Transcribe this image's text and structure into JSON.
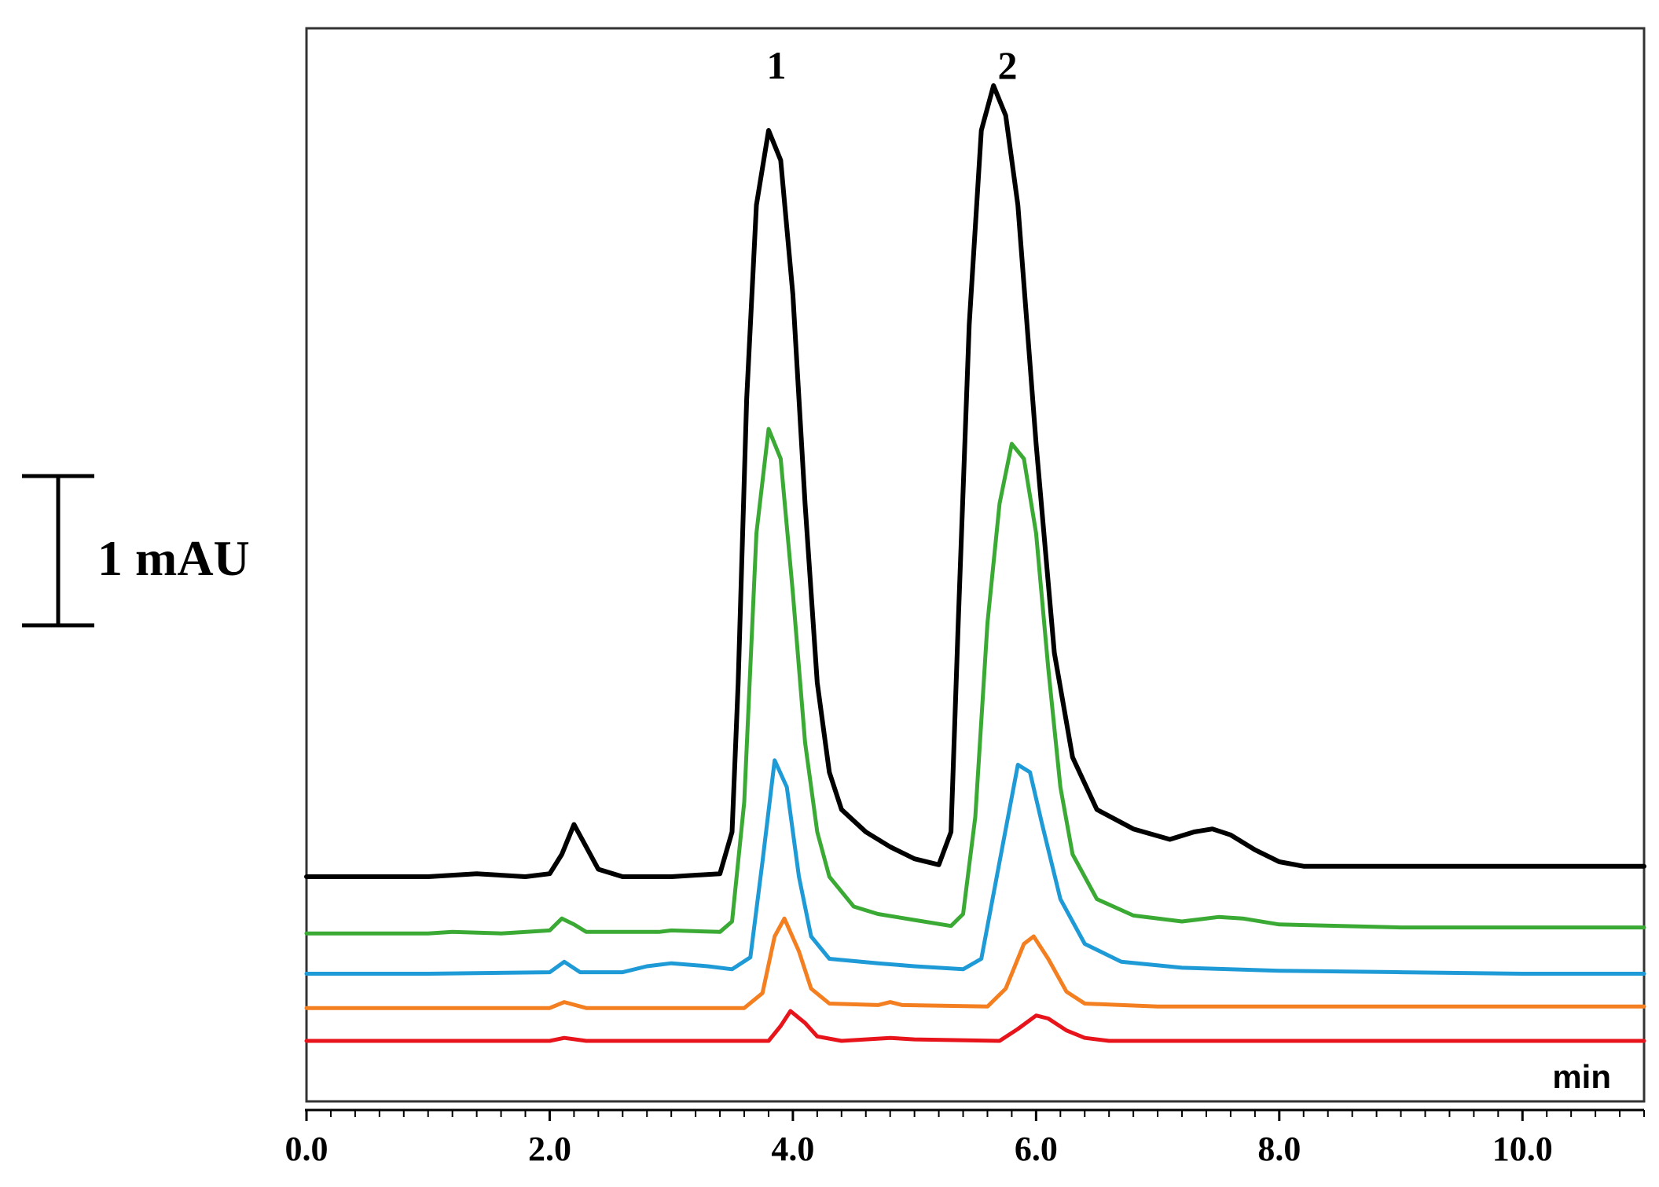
{
  "chart_data": {
    "type": "line",
    "title": "",
    "xlabel": "min",
    "ylabel": "",
    "xlim": [
      0,
      11
    ],
    "x_ticks": [
      "0.0",
      "2.0",
      "4.0",
      "6.0",
      "8.0",
      "10.0"
    ],
    "x_tick_values": [
      0,
      2,
      4,
      6,
      8,
      10
    ],
    "minor_tick_step": 0.2,
    "grid": false,
    "legend": "none",
    "scale_bar": {
      "label": "1 mAU",
      "value": 1
    },
    "peak_labels": [
      {
        "text": "1",
        "x": 3.8
      },
      {
        "text": "2",
        "x": 5.7
      }
    ],
    "series": [
      {
        "color": "#000000",
        "baseline": 1.1,
        "points": [
          [
            0,
            1.1
          ],
          [
            1.0,
            1.1
          ],
          [
            1.4,
            1.12
          ],
          [
            1.8,
            1.1
          ],
          [
            2.0,
            1.12
          ],
          [
            2.1,
            1.25
          ],
          [
            2.2,
            1.45
          ],
          [
            2.3,
            1.3
          ],
          [
            2.4,
            1.15
          ],
          [
            2.6,
            1.1
          ],
          [
            3.0,
            1.1
          ],
          [
            3.4,
            1.12
          ],
          [
            3.5,
            1.4
          ],
          [
            3.55,
            2.4
          ],
          [
            3.62,
            4.3
          ],
          [
            3.7,
            5.6
          ],
          [
            3.8,
            6.1
          ],
          [
            3.9,
            5.9
          ],
          [
            4.0,
            5.0
          ],
          [
            4.1,
            3.6
          ],
          [
            4.2,
            2.4
          ],
          [
            4.3,
            1.8
          ],
          [
            4.4,
            1.55
          ],
          [
            4.6,
            1.4
          ],
          [
            4.8,
            1.3
          ],
          [
            5.0,
            1.22
          ],
          [
            5.2,
            1.18
          ],
          [
            5.3,
            1.4
          ],
          [
            5.36,
            2.8
          ],
          [
            5.45,
            4.8
          ],
          [
            5.55,
            6.1
          ],
          [
            5.65,
            6.4
          ],
          [
            5.75,
            6.2
          ],
          [
            5.85,
            5.6
          ],
          [
            6.0,
            4.0
          ],
          [
            6.15,
            2.6
          ],
          [
            6.3,
            1.9
          ],
          [
            6.5,
            1.55
          ],
          [
            6.8,
            1.42
          ],
          [
            7.1,
            1.35
          ],
          [
            7.3,
            1.4
          ],
          [
            7.45,
            1.42
          ],
          [
            7.6,
            1.38
          ],
          [
            7.8,
            1.28
          ],
          [
            8.0,
            1.2
          ],
          [
            8.2,
            1.17
          ],
          [
            9.0,
            1.17
          ],
          [
            10.0,
            1.17
          ],
          [
            11.0,
            1.17
          ]
        ]
      },
      {
        "color": "#3aaa35",
        "baseline": 0.72,
        "points": [
          [
            0,
            0.72
          ],
          [
            1.0,
            0.72
          ],
          [
            1.2,
            0.73
          ],
          [
            1.6,
            0.72
          ],
          [
            2.0,
            0.74
          ],
          [
            2.1,
            0.82
          ],
          [
            2.2,
            0.78
          ],
          [
            2.3,
            0.73
          ],
          [
            2.9,
            0.73
          ],
          [
            3.0,
            0.74
          ],
          [
            3.4,
            0.73
          ],
          [
            3.5,
            0.8
          ],
          [
            3.6,
            1.6
          ],
          [
            3.7,
            3.4
          ],
          [
            3.8,
            4.1
          ],
          [
            3.9,
            3.9
          ],
          [
            4.0,
            3.0
          ],
          [
            4.1,
            2.0
          ],
          [
            4.2,
            1.4
          ],
          [
            4.3,
            1.1
          ],
          [
            4.5,
            0.9
          ],
          [
            4.7,
            0.85
          ],
          [
            5.0,
            0.81
          ],
          [
            5.3,
            0.77
          ],
          [
            5.4,
            0.85
          ],
          [
            5.5,
            1.5
          ],
          [
            5.6,
            2.8
          ],
          [
            5.7,
            3.6
          ],
          [
            5.8,
            4.0
          ],
          [
            5.9,
            3.9
          ],
          [
            6.0,
            3.4
          ],
          [
            6.1,
            2.5
          ],
          [
            6.2,
            1.7
          ],
          [
            6.3,
            1.25
          ],
          [
            6.5,
            0.95
          ],
          [
            6.8,
            0.84
          ],
          [
            7.2,
            0.8
          ],
          [
            7.5,
            0.83
          ],
          [
            7.7,
            0.82
          ],
          [
            8.0,
            0.78
          ],
          [
            9.0,
            0.76
          ],
          [
            10.0,
            0.76
          ],
          [
            11.0,
            0.76
          ]
        ]
      },
      {
        "color": "#1e9ad6",
        "baseline": 0.45,
        "points": [
          [
            0,
            0.45
          ],
          [
            1.0,
            0.45
          ],
          [
            2.0,
            0.46
          ],
          [
            2.12,
            0.53
          ],
          [
            2.25,
            0.46
          ],
          [
            2.6,
            0.46
          ],
          [
            2.8,
            0.5
          ],
          [
            3.0,
            0.52
          ],
          [
            3.3,
            0.5
          ],
          [
            3.5,
            0.48
          ],
          [
            3.65,
            0.56
          ],
          [
            3.75,
            1.2
          ],
          [
            3.85,
            1.88
          ],
          [
            3.95,
            1.7
          ],
          [
            4.05,
            1.1
          ],
          [
            4.15,
            0.7
          ],
          [
            4.3,
            0.55
          ],
          [
            4.7,
            0.52
          ],
          [
            5.0,
            0.5
          ],
          [
            5.4,
            0.48
          ],
          [
            5.55,
            0.55
          ],
          [
            5.7,
            1.2
          ],
          [
            5.85,
            1.85
          ],
          [
            5.95,
            1.8
          ],
          [
            6.05,
            1.45
          ],
          [
            6.2,
            0.95
          ],
          [
            6.4,
            0.65
          ],
          [
            6.7,
            0.53
          ],
          [
            7.2,
            0.49
          ],
          [
            8.0,
            0.47
          ],
          [
            9.0,
            0.46
          ],
          [
            10.0,
            0.45
          ],
          [
            11.0,
            0.45
          ]
        ]
      },
      {
        "color": "#f47f20",
        "baseline": 0.22,
        "points": [
          [
            0,
            0.22
          ],
          [
            2.0,
            0.22
          ],
          [
            2.12,
            0.26
          ],
          [
            2.3,
            0.22
          ],
          [
            3.6,
            0.22
          ],
          [
            3.75,
            0.32
          ],
          [
            3.85,
            0.7
          ],
          [
            3.93,
            0.82
          ],
          [
            4.05,
            0.6
          ],
          [
            4.15,
            0.35
          ],
          [
            4.3,
            0.25
          ],
          [
            4.7,
            0.24
          ],
          [
            4.8,
            0.26
          ],
          [
            4.9,
            0.24
          ],
          [
            5.6,
            0.23
          ],
          [
            5.75,
            0.35
          ],
          [
            5.9,
            0.65
          ],
          [
            5.98,
            0.7
          ],
          [
            6.1,
            0.55
          ],
          [
            6.25,
            0.33
          ],
          [
            6.4,
            0.25
          ],
          [
            6.7,
            0.24
          ],
          [
            7.0,
            0.23
          ],
          [
            8.0,
            0.23
          ],
          [
            11.0,
            0.23
          ]
        ]
      },
      {
        "color": "#e8141c",
        "baseline": 0.0,
        "points": [
          [
            0,
            0.0
          ],
          [
            2.0,
            0.0
          ],
          [
            2.12,
            0.02
          ],
          [
            2.3,
            0.0
          ],
          [
            3.8,
            0.0
          ],
          [
            3.9,
            0.1
          ],
          [
            3.98,
            0.2
          ],
          [
            4.1,
            0.12
          ],
          [
            4.2,
            0.03
          ],
          [
            4.4,
            0.0
          ],
          [
            4.8,
            0.02
          ],
          [
            5.0,
            0.01
          ],
          [
            5.7,
            0.0
          ],
          [
            5.85,
            0.08
          ],
          [
            6.0,
            0.17
          ],
          [
            6.1,
            0.15
          ],
          [
            6.25,
            0.07
          ],
          [
            6.4,
            0.02
          ],
          [
            6.6,
            0.0
          ],
          [
            8.0,
            0.0
          ],
          [
            11.0,
            0.0
          ]
        ]
      }
    ]
  }
}
